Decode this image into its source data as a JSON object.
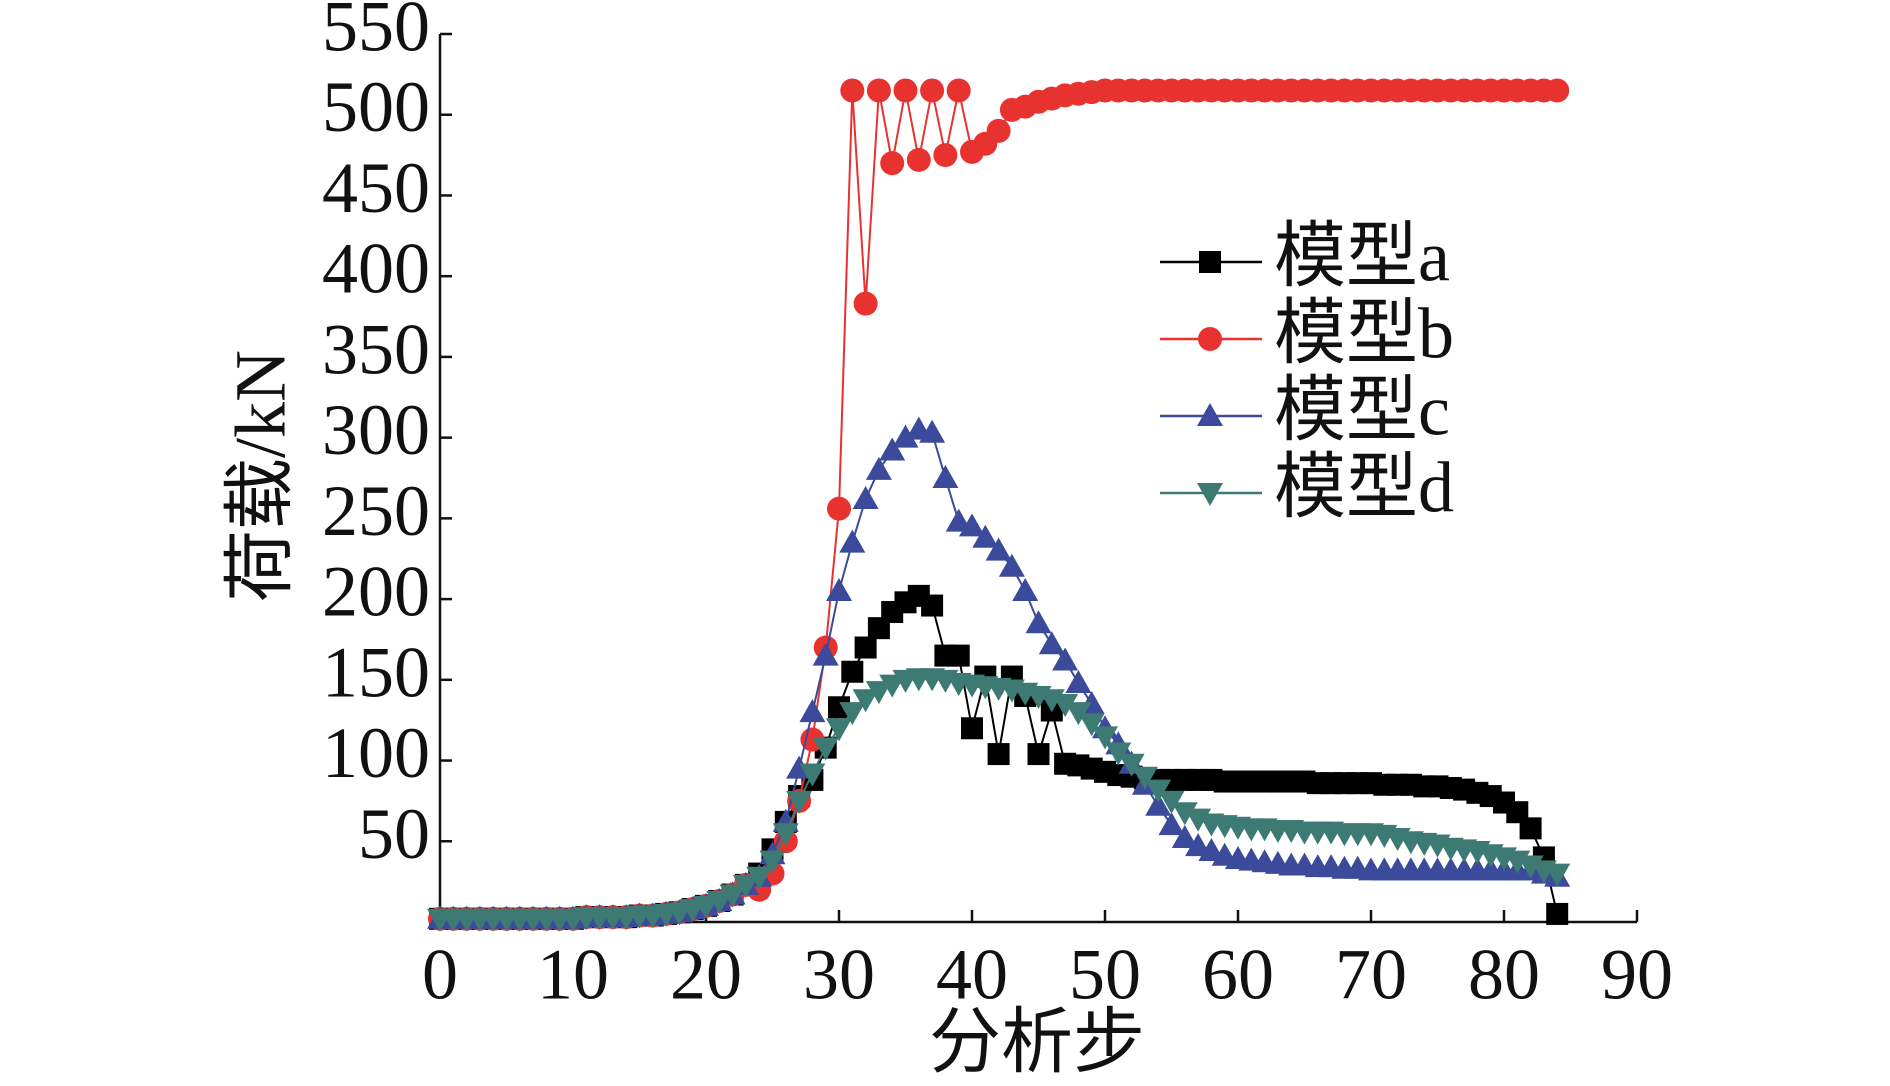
{
  "chart_data": {
    "type": "line",
    "x_label": "分析步",
    "y_label": "荷载/kN",
    "x": [
      0,
      1,
      2,
      3,
      4,
      5,
      6,
      7,
      8,
      9,
      10,
      11,
      12,
      13,
      14,
      15,
      16,
      17,
      18,
      19,
      20,
      21,
      22,
      23,
      24,
      25,
      26,
      27,
      28,
      29,
      30,
      31,
      32,
      33,
      34,
      35,
      36,
      37,
      38,
      39,
      40,
      41,
      42,
      43,
      44,
      45,
      46,
      47,
      48,
      49,
      50,
      51,
      52,
      53,
      54,
      55,
      56,
      57,
      58,
      59,
      60,
      61,
      62,
      63,
      64,
      65,
      66,
      67,
      68,
      69,
      70,
      71,
      72,
      73,
      74,
      75,
      76,
      77,
      78,
      79,
      80,
      81,
      82,
      83,
      84
    ],
    "series": [
      {
        "name": "模型a",
        "color": "#000000",
        "marker": "square",
        "values": [
          2,
          2,
          2,
          2,
          2,
          2,
          2,
          2,
          2,
          2,
          2,
          3,
          3,
          3,
          3,
          4,
          4,
          5,
          6,
          8,
          10,
          13,
          17,
          23,
          30,
          45,
          62,
          78,
          88,
          108,
          133,
          155,
          170,
          182,
          192,
          198,
          202,
          196,
          165,
          165,
          120,
          152,
          104,
          152,
          140,
          104,
          131,
          98,
          97,
          95,
          93,
          91,
          90,
          89,
          88,
          88,
          88,
          88,
          88,
          87,
          87,
          87,
          87,
          87,
          87,
          87,
          86,
          86,
          86,
          86,
          86,
          85,
          85,
          85,
          84,
          84,
          83,
          82,
          80,
          78,
          74,
          68,
          58,
          40,
          5
        ]
      },
      {
        "name": "模型b",
        "color": "#e8322f",
        "marker": "circle",
        "values": [
          2,
          2,
          2,
          2,
          2,
          2,
          2,
          2,
          2,
          2,
          2,
          3,
          3,
          3,
          3,
          4,
          4,
          5,
          6,
          8,
          10,
          13,
          17,
          23,
          20,
          30,
          50,
          75,
          113,
          170,
          256,
          515,
          383,
          515,
          470,
          515,
          472,
          515,
          475,
          515,
          477,
          482,
          490,
          503,
          505,
          508,
          510,
          512,
          513,
          514,
          515,
          515,
          515,
          515,
          515,
          515,
          515,
          515,
          515,
          515,
          515,
          515,
          515,
          515,
          515,
          515,
          515,
          515,
          515,
          515,
          515,
          515,
          515,
          515,
          515,
          515,
          515,
          515,
          515,
          515,
          515,
          515,
          515,
          515,
          515
        ]
      },
      {
        "name": "模型c",
        "color": "#3b4a9a",
        "marker": "triangle",
        "values": [
          2,
          2,
          2,
          2,
          2,
          2,
          2,
          2,
          2,
          2,
          2,
          3,
          3,
          3,
          3,
          4,
          4,
          5,
          6,
          8,
          10,
          13,
          17,
          23,
          28,
          42,
          62,
          95,
          130,
          165,
          205,
          235,
          262,
          280,
          292,
          300,
          305,
          303,
          275,
          248,
          245,
          238,
          230,
          220,
          205,
          185,
          172,
          162,
          148,
          135,
          120,
          110,
          98,
          85,
          72,
          60,
          52,
          47,
          44,
          41,
          39,
          38,
          37,
          36,
          35,
          35,
          34,
          34,
          33,
          33,
          32,
          32,
          32,
          32,
          32,
          32,
          32,
          32,
          32,
          32,
          32,
          32,
          32,
          30,
          28
        ]
      },
      {
        "name": "模型d",
        "color": "#3d7a73",
        "marker": "triangle-down",
        "values": [
          2,
          2,
          2,
          2,
          2,
          2,
          2,
          2,
          2,
          2,
          2,
          3,
          3,
          3,
          3,
          4,
          4,
          5,
          6,
          8,
          10,
          13,
          17,
          23,
          28,
          38,
          55,
          75,
          92,
          108,
          120,
          130,
          138,
          143,
          147,
          150,
          151,
          151,
          150,
          148,
          147,
          146,
          145,
          144,
          142,
          140,
          138,
          135,
          130,
          123,
          115,
          105,
          98,
          90,
          82,
          75,
          68,
          64,
          61,
          60,
          59,
          58,
          58,
          57,
          57,
          56,
          56,
          56,
          55,
          55,
          55,
          54,
          52,
          50,
          49,
          48,
          46,
          45,
          44,
          42,
          40,
          38,
          35,
          32,
          30
        ]
      }
    ],
    "xlim": [
      0,
      90
    ],
    "xticks": [
      0,
      10,
      20,
      30,
      40,
      50,
      60,
      70,
      80,
      90
    ],
    "ylim": [
      0,
      550
    ],
    "yticks": [
      50,
      100,
      150,
      200,
      250,
      300,
      350,
      400,
      450,
      500,
      550
    ]
  }
}
